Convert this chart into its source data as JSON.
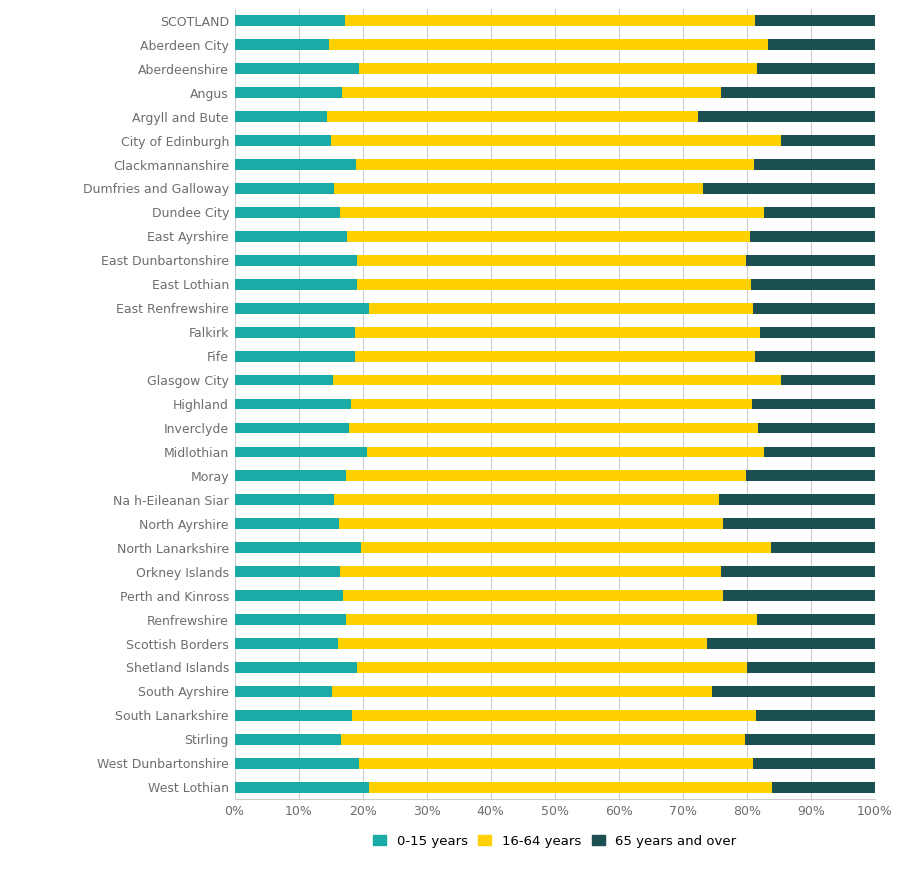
{
  "categories": [
    "SCOTLAND",
    "Aberdeen City",
    "Aberdeenshire",
    "Angus",
    "Argyll and Bute",
    "City of Edinburgh",
    "Clackmannanshire",
    "Dumfries and Galloway",
    "Dundee City",
    "East Ayrshire",
    "East Dunbartonshire",
    "East Lothian",
    "East Renfrewshire",
    "Falkirk",
    "Fife",
    "Glasgow City",
    "Highland",
    "Inverclyde",
    "Midlothian",
    "Moray",
    "Na h-Eileanan Siar",
    "North Ayrshire",
    "North Lanarkshire",
    "Orkney Islands",
    "Perth and Kinross",
    "Renfrewshire",
    "Scottish Borders",
    "Shetland Islands",
    "South Ayrshire",
    "South Lanarkshire",
    "Stirling",
    "West Dunbartonshire",
    "West Lothian"
  ],
  "age_0_15": [
    17.3,
    14.8,
    19.4,
    16.8,
    14.5,
    15.0,
    19.0,
    15.6,
    16.4,
    17.5,
    19.2,
    19.2,
    21.0,
    18.8,
    18.8,
    15.3,
    18.2,
    17.8,
    20.7,
    17.4,
    15.5,
    16.3,
    19.8,
    16.5,
    16.9,
    17.4,
    16.2,
    19.2,
    15.2,
    18.4,
    16.6,
    19.4,
    21.0
  ],
  "age_16_64": [
    63.9,
    68.5,
    62.2,
    59.1,
    57.8,
    70.3,
    62.1,
    57.5,
    66.3,
    63.0,
    60.6,
    61.5,
    60.0,
    63.2,
    62.4,
    70.0,
    62.6,
    63.9,
    62.0,
    62.4,
    60.1,
    60.0,
    63.9,
    59.5,
    59.3,
    64.2,
    57.6,
    60.8,
    59.3,
    63.0,
    63.1,
    61.5,
    63.0
  ],
  "age_65_plus": [
    18.8,
    16.7,
    18.4,
    24.1,
    27.7,
    14.7,
    18.9,
    26.9,
    17.3,
    19.5,
    20.2,
    19.3,
    19.0,
    18.0,
    18.8,
    14.7,
    19.2,
    18.3,
    17.3,
    20.2,
    24.4,
    23.7,
    16.3,
    24.0,
    23.8,
    18.4,
    26.2,
    20.0,
    25.5,
    18.6,
    20.3,
    19.1,
    16.0
  ],
  "color_0_15": "#1AABA6",
  "color_16_64": "#FFD100",
  "color_65_plus": "#1B4F52",
  "background_color": "#ffffff",
  "grid_color": "#cccccc",
  "label_0_15": "0-15 years",
  "label_16_64": "16-64 years",
  "label_65_plus": "65 years and over",
  "xlabel_ticks": [
    "0%",
    "10%",
    "20%",
    "30%",
    "40%",
    "50%",
    "60%",
    "70%",
    "80%",
    "90%",
    "100%"
  ],
  "xlabel_vals": [
    0,
    10,
    20,
    30,
    40,
    50,
    60,
    70,
    80,
    90,
    100
  ],
  "text_color": "#6d6d6d",
  "bar_height": 0.45,
  "figsize": [
    9.02,
    8.88
  ],
  "dpi": 100
}
